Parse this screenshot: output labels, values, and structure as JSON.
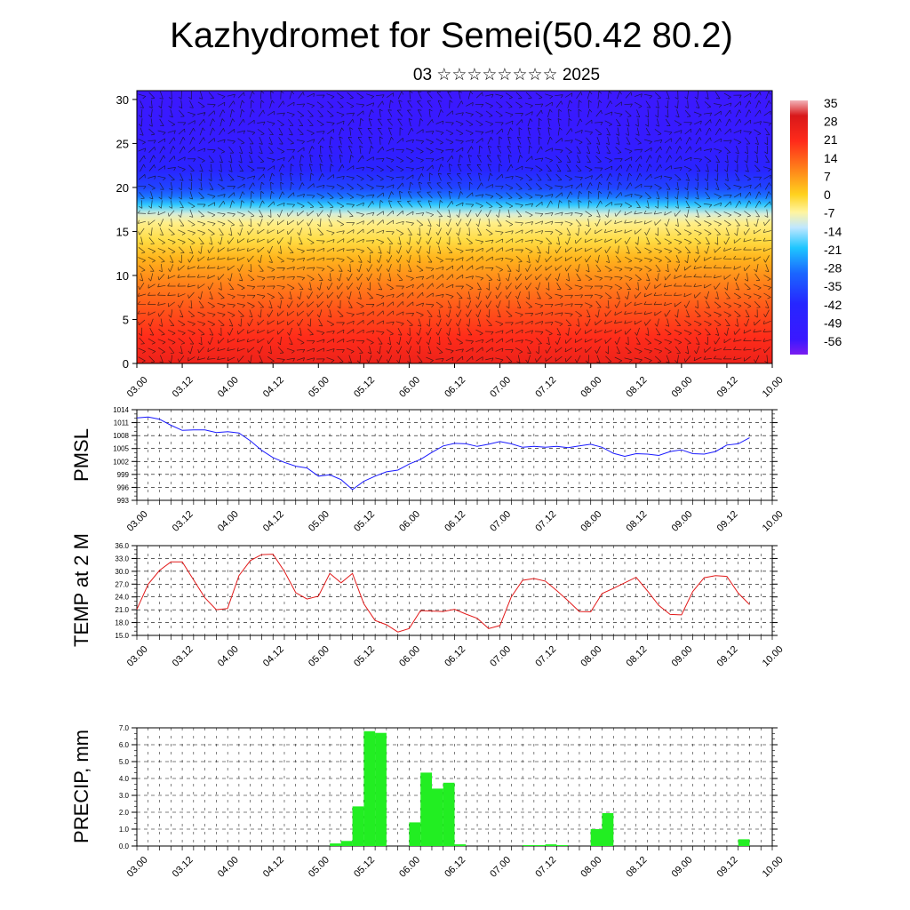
{
  "page": {
    "title": "Kazhydromet for Semei(50.42 80.2)",
    "subtitle": "03 ☆☆☆☆☆☆☆☆ 2025"
  },
  "colors": {
    "pmsl_line": "#1a1aff",
    "temp_line": "#e21a1a",
    "precip_bar": "#22ee22",
    "wind_barb": "#111111"
  },
  "icons": {
    "wind_marks": "wind-barb-icon"
  },
  "chart_data": [
    {
      "type": "heatmap",
      "title": "Kazhydromet for Semei(50.42 80.2)",
      "subtitle": "03 ☆☆☆☆☆☆☆☆ 2025",
      "x_ticks": [
        "03.00",
        "03.12",
        "04.00",
        "04.12",
        "05.00",
        "05.12",
        "06.00",
        "06.12",
        "07.00",
        "07.12",
        "08.00",
        "08.12",
        "09.00",
        "09.12",
        "10.00"
      ],
      "ylim": [
        0,
        31
      ],
      "y_ticks": [
        0,
        5,
        10,
        15,
        20,
        25,
        30
      ],
      "colorbar_labels": [
        "35",
        "28",
        "21",
        "14",
        "7",
        "0",
        "-7",
        "-14",
        "-21",
        "-28",
        "-35",
        "-42",
        "-49",
        "-56"
      ],
      "colorbar_range": [
        -63,
        42
      ],
      "temperature_profile": {
        "heights": [
          0,
          3,
          6,
          9,
          12,
          14,
          16,
          17,
          18,
          19,
          20,
          22,
          24,
          26,
          28,
          31
        ],
        "values": [
          30,
          25,
          20,
          14,
          7,
          1,
          -3,
          -8,
          -18,
          -28,
          -36,
          -44,
          -50,
          -54,
          -55,
          -57
        ]
      },
      "overlay": "wind barbs"
    },
    {
      "type": "line",
      "ylabel": "PMSL",
      "ylim": [
        993,
        1014
      ],
      "y_ticks": [
        "1014",
        "1011",
        "1008",
        "1005",
        "1002",
        "999",
        "996",
        "993"
      ],
      "x_ticks": [
        "03.00",
        "03.12",
        "04.00",
        "04.12",
        "05.00",
        "05.12",
        "06.00",
        "06.12",
        "07.00",
        "07.12",
        "08.00",
        "08.12",
        "09.00",
        "09.12",
        "10.00"
      ],
      "x_range": [
        0,
        168
      ],
      "series": [
        {
          "x": [
            0,
            3,
            6,
            9,
            12,
            15,
            18,
            21,
            24,
            27,
            30,
            33,
            36,
            39,
            42,
            45,
            48,
            51,
            54,
            57,
            60,
            63,
            66,
            69,
            72,
            75,
            78,
            81,
            84,
            87,
            90,
            93,
            96,
            99,
            102,
            105,
            108,
            111,
            114,
            117,
            120,
            123,
            126,
            129,
            132,
            135,
            138,
            141,
            144,
            147,
            150,
            153,
            156,
            159,
            162
          ],
          "values": [
            1012.1,
            1012.3,
            1011.8,
            1010.4,
            1009.2,
            1009.3,
            1009.3,
            1008.7,
            1008.9,
            1008.6,
            1006.8,
            1004.6,
            1002.9,
            1001.8,
            1000.9,
            1000.5,
            998.6,
            998.9,
            997.8,
            995.5,
            997.4,
            998.6,
            999.6,
            1000.0,
            1001.4,
            1002.5,
            1004.1,
            1005.6,
            1006.2,
            1006.1,
            1005.5,
            1006.0,
            1006.6,
            1006.1,
            1005.3,
            1005.5,
            1005.3,
            1005.5,
            1005.2,
            1005.6,
            1006.0,
            1005.3,
            1003.9,
            1003.2,
            1003.8,
            1003.7,
            1003.4,
            1004.3,
            1004.7,
            1003.8,
            1003.7,
            1004.3,
            1005.8,
            1006.1,
            1007.5
          ]
        }
      ]
    },
    {
      "type": "line",
      "ylabel": "TEMP at 2 M",
      "ylim": [
        15,
        36
      ],
      "y_ticks": [
        "36.0",
        "33.0",
        "30.0",
        "27.0",
        "24.0",
        "21.0",
        "18.0",
        "15.0"
      ],
      "x_ticks": [
        "03.00",
        "03.12",
        "04.00",
        "04.12",
        "05.00",
        "05.12",
        "06.00",
        "06.12",
        "07.00",
        "07.12",
        "08.00",
        "08.12",
        "09.00",
        "09.12",
        "10.00"
      ],
      "x_range": [
        0,
        168
      ],
      "series": [
        {
          "x": [
            0,
            3,
            6,
            9,
            12,
            15,
            18,
            21,
            24,
            27,
            30,
            33,
            36,
            39,
            42,
            45,
            48,
            51,
            54,
            57,
            60,
            63,
            66,
            69,
            72,
            75,
            78,
            81,
            84,
            87,
            90,
            93,
            96,
            99,
            102,
            105,
            108,
            111,
            114,
            117,
            120,
            123,
            126,
            129,
            132,
            135,
            138,
            141,
            144,
            147,
            150,
            153,
            156,
            159,
            162
          ],
          "values": [
            21.1,
            27.0,
            30.2,
            32.2,
            32.2,
            28.0,
            23.8,
            21.0,
            21.3,
            29.0,
            32.5,
            33.9,
            34.0,
            30.0,
            25.0,
            23.5,
            24.2,
            29.5,
            27.3,
            29.5,
            22.4,
            18.5,
            17.5,
            15.8,
            16.6,
            20.8,
            20.7,
            20.6,
            21.1,
            20.0,
            19.0,
            16.6,
            17.3,
            24.0,
            27.9,
            28.3,
            27.7,
            25.5,
            23.1,
            20.6,
            20.5,
            24.8,
            26.0,
            27.3,
            28.6,
            25.4,
            22.0,
            19.9,
            19.8,
            25.3,
            28.5,
            29.0,
            28.8,
            24.9,
            22.2
          ]
        }
      ]
    },
    {
      "type": "bar",
      "ylabel": "PRECIP, mm",
      "ylim": [
        0,
        7
      ],
      "y_ticks": [
        "7.0",
        "6.0",
        "5.0",
        "4.0",
        "3.0",
        "2.0",
        "1.0",
        "0.0"
      ],
      "x_ticks": [
        "03.00",
        "03.12",
        "04.00",
        "04.12",
        "05.00",
        "05.12",
        "06.00",
        "06.12",
        "07.00",
        "07.12",
        "08.00",
        "08.12",
        "09.00",
        "09.12",
        "10.00"
      ],
      "x_range": [
        0,
        168
      ],
      "bar_width_hours": 3,
      "series": [
        {
          "x": [
            51,
            54,
            57,
            60,
            63,
            66,
            72,
            75,
            78,
            81,
            84,
            102,
            105,
            108,
            111,
            120,
            123,
            159
          ],
          "values": [
            0.15,
            0.3,
            2.35,
            6.8,
            6.7,
            0.0,
            1.4,
            4.35,
            3.4,
            3.75,
            0.1,
            0.05,
            0.05,
            0.1,
            0.05,
            1.0,
            1.95,
            0.4
          ]
        }
      ]
    }
  ]
}
